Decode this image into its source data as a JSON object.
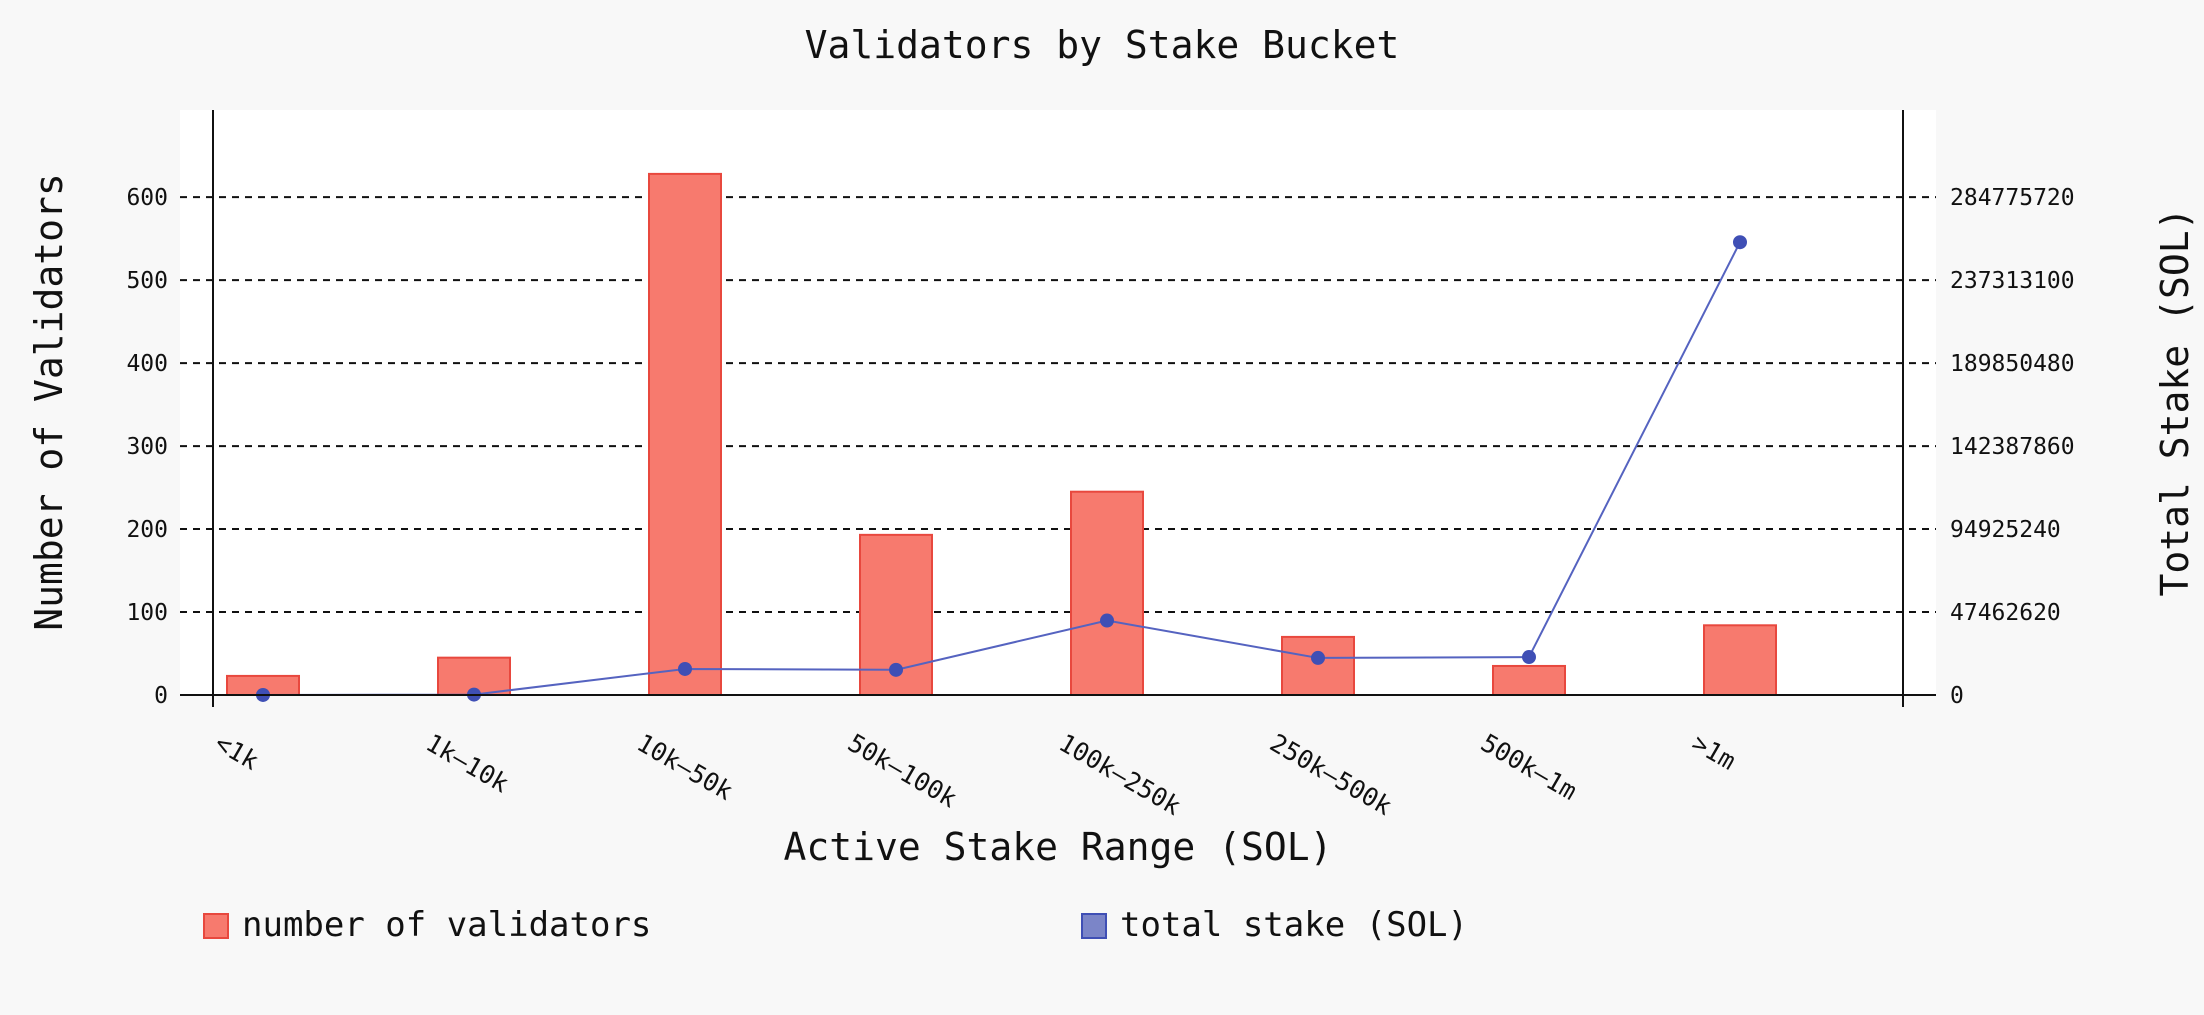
{
  "chart_data": {
    "type": "bar",
    "title": "Validators by Stake Bucket",
    "xlabel": "Active Stake Range (SOL)",
    "ylabel": "Number of Validators",
    "y2label": "Total Stake (SOL)",
    "categories": [
      "<1k",
      "1k–10k",
      "10k–50k",
      "50k–100k",
      "100k–250k",
      "250k–500k",
      "500k–1m",
      ">1m"
    ],
    "series": [
      {
        "name": "number of validators",
        "type": "bar",
        "axis": "left",
        "color": "#f77a6e",
        "values": [
          23,
          45,
          628,
          193,
          245,
          70,
          35,
          84
        ]
      },
      {
        "name": "total stake (SOL)",
        "type": "line",
        "axis": "right",
        "color": "#3f4fb5",
        "legend_color": "#7b85c8",
        "values": [
          10000,
          250000,
          14900000,
          14400000,
          42600000,
          21200000,
          21700000,
          259000000
        ]
      }
    ],
    "y_ticks": [
      0,
      100,
      200,
      300,
      400,
      500,
      600
    ],
    "y2_ticks": [
      0,
      47462620,
      94925240,
      142387860,
      189850480,
      237313100,
      284775720
    ],
    "ylim": [
      0,
      705
    ],
    "y2lim": [
      0,
      334611471
    ],
    "grid": true,
    "legend": "bottom"
  }
}
